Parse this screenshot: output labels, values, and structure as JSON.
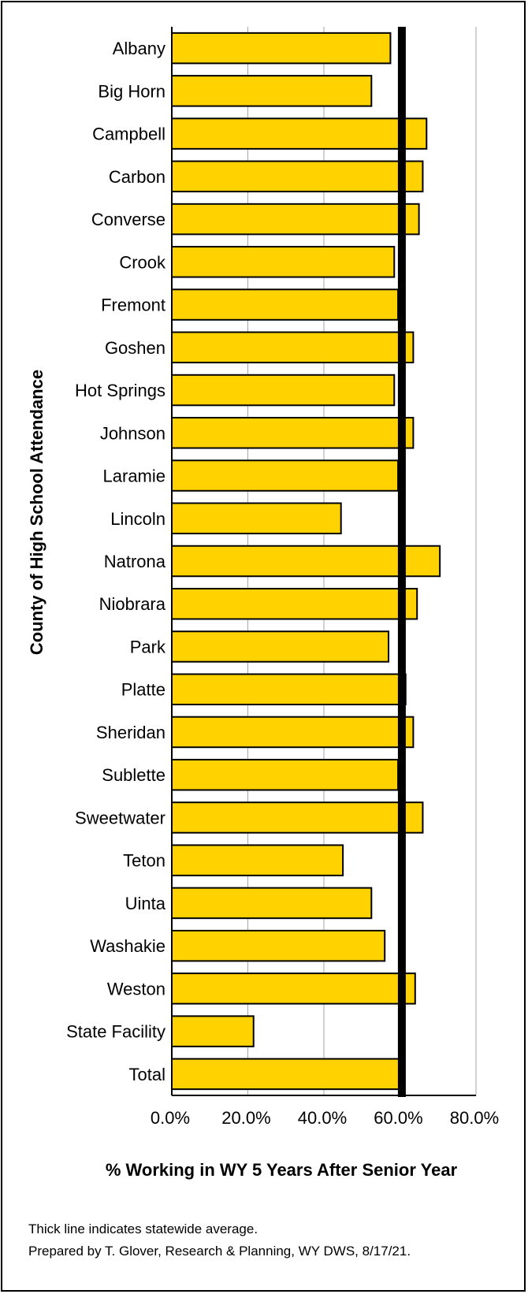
{
  "chart_data": {
    "type": "bar",
    "orientation": "horizontal",
    "title": "",
    "xlabel": "% Working in WY 5 Years After Senior Year",
    "ylabel": "County of High School Attendance",
    "categories": [
      "Albany",
      "Big Horn",
      "Campbell",
      "Carbon",
      "Converse",
      "Crook",
      "Fremont",
      "Goshen",
      "Hot Springs",
      "Johnson",
      "Laramie",
      "Lincoln",
      "Natrona",
      "Niobrara",
      "Park",
      "Platte",
      "Sheridan",
      "Sublette",
      "Sweetwater",
      "Teton",
      "Uinta",
      "Washakie",
      "Weston",
      "State Facility",
      "Total"
    ],
    "values": [
      57.5,
      52.5,
      67.0,
      66.0,
      65.0,
      58.5,
      59.5,
      63.5,
      58.5,
      63.5,
      59.5,
      44.5,
      70.5,
      64.5,
      57.0,
      61.5,
      63.5,
      59.5,
      66.0,
      45.0,
      52.5,
      56.0,
      64.0,
      21.5,
      60.5
    ],
    "xlim": [
      0,
      80
    ],
    "x_ticks": [
      "0.0%",
      "20.0%",
      "40.0%",
      "60.0%",
      "80.0%"
    ],
    "x_tick_values": [
      0,
      20,
      40,
      60,
      80
    ],
    "reference_line": {
      "value": 60.5,
      "description": "statewide average"
    },
    "grid": "vertical",
    "bar_color": "#ffd200",
    "bar_edge_color": "#000000",
    "reference_line_color": "#000000"
  },
  "footnotes": {
    "line1": "Thick line indicates statewide average.",
    "line2": "Prepared by T. Glover, Research & Planning, WY DWS, 8/17/21."
  }
}
